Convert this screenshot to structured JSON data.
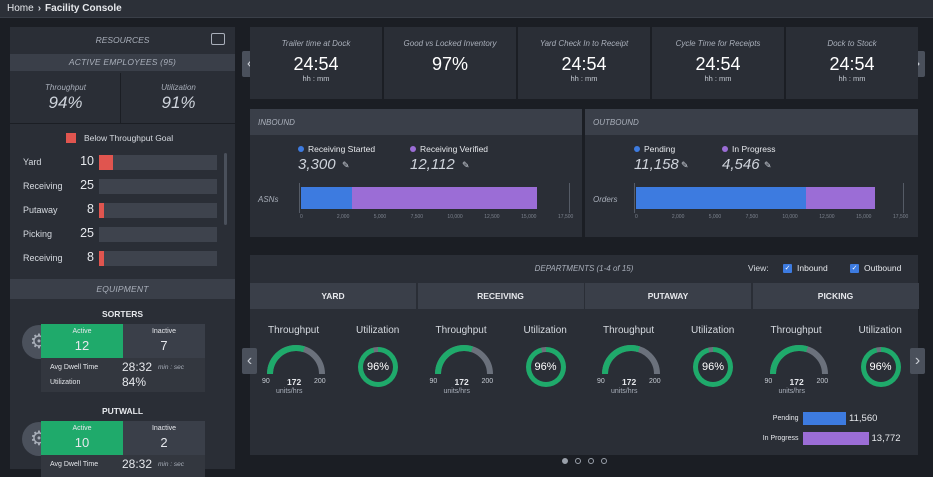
{
  "breadcrumb": {
    "home": "Home",
    "current": "Facility Console"
  },
  "resources": {
    "title": "RESOURCES",
    "active_employees": "ACTIVE EMPLOYEES (95)",
    "throughput_label": "Throughput",
    "throughput_value": "94%",
    "utilization_label": "Utilization",
    "utilization_value": "91%",
    "legend": "Below Throughput Goal",
    "rows": [
      {
        "name": "Yard",
        "value": "10",
        "fill": 0.12
      },
      {
        "name": "Receiving",
        "value": "25",
        "fill": 0
      },
      {
        "name": "Putaway",
        "value": "8",
        "fill": 0.04
      },
      {
        "name": "Picking",
        "value": "25",
        "fill": 0
      },
      {
        "name": "Receiving",
        "value": "8",
        "fill": 0.04
      }
    ]
  },
  "equipment": {
    "title": "EQUIPMENT",
    "groups": [
      {
        "name": "SORTERS",
        "active_label": "Active",
        "active": "12",
        "inactive_label": "Inactive",
        "inactive": "7",
        "dwell_label": "Avg Dwell Time",
        "dwell": "28:32",
        "dwell_unit": "min : sec",
        "util_label": "Utilization",
        "util": "84%"
      },
      {
        "name": "PUTWALL",
        "active_label": "Active",
        "active": "10",
        "inactive_label": "Inactive",
        "inactive": "2",
        "dwell_label": "Avg Dwell Time",
        "dwell": "28:32",
        "dwell_unit": "min : sec"
      }
    ]
  },
  "kpis": [
    {
      "title": "Trailer time at Dock",
      "value": "24:54",
      "unit": "hh : mm"
    },
    {
      "title": "Good vs Locked Inventory",
      "value": "97%",
      "unit": ""
    },
    {
      "title": "Yard Check In to Receipt",
      "value": "24:54",
      "unit": "hh : mm"
    },
    {
      "title": "Cycle Time for Receipts",
      "value": "24:54",
      "unit": "hh : mm"
    },
    {
      "title": "Dock to Stock",
      "value": "24:54",
      "unit": "hh : mm"
    }
  ],
  "inbound": {
    "title": "INBOUND",
    "s1_label": "Receiving Started",
    "s1_value": "3,300",
    "s2_label": "Receiving Verified",
    "s2_value": "12,112",
    "row_label": "ASNs",
    "ticks": [
      "0",
      "2,000",
      "5,000",
      "7,500",
      "10,000",
      "12,500",
      "15,000",
      "17,500"
    ],
    "axis_max": 17500,
    "colors": {
      "s1": "#3d7be0",
      "s2": "#9b6dd6"
    }
  },
  "outbound": {
    "title": "OUTBOUND",
    "s1_label": "Pending",
    "s1_value": "11,158",
    "s2_label": "In Progress",
    "s2_value": "4,546",
    "row_label": "Orders",
    "ticks": [
      "0",
      "2,000",
      "5,000",
      "7,500",
      "10,000",
      "12,500",
      "15,000",
      "17,500"
    ],
    "axis_max": 17500
  },
  "departments": {
    "title": "DEPARTMENTS (1-4 of 15)",
    "view_label": "View:",
    "inbound_label": "Inbound",
    "outbound_label": "Outbound",
    "cards": [
      {
        "name": "YARD",
        "throughput_label": "Throughput",
        "utilization_label": "Utilization",
        "min": "90",
        "val": "172",
        "max": "200",
        "units": "units/hrs",
        "util": "96%",
        "gauge": 0.6,
        "util_frac": 0.96
      },
      {
        "name": "RECEIVING",
        "throughput_label": "Throughput",
        "utilization_label": "Utilization",
        "min": "90",
        "val": "172",
        "max": "200",
        "units": "units/hrs",
        "util": "96%",
        "gauge": 0.6,
        "util_frac": 0.96
      },
      {
        "name": "PUTAWAY",
        "throughput_label": "Throughput",
        "utilization_label": "Utilization",
        "min": "90",
        "val": "172",
        "max": "200",
        "units": "units/hrs",
        "util": "96%",
        "gauge": 0.6,
        "util_frac": 0.96
      },
      {
        "name": "PICKING",
        "throughput_label": "Throughput",
        "utilization_label": "Utilization",
        "min": "90",
        "val": "172",
        "max": "200",
        "units": "units/hrs",
        "util": "96%",
        "gauge": 0.6,
        "util_frac": 0.96
      }
    ],
    "picking_bars": [
      {
        "label": "Pending",
        "value": "11,560",
        "frac": 0.66
      },
      {
        "label": "In Progress",
        "value": "13,772",
        "frac": 1.0
      }
    ]
  },
  "colors": {
    "green": "#1faa6b",
    "red": "#e0554f",
    "blue": "#3d7be0",
    "purple": "#9b6dd6"
  },
  "icons": {
    "export": "export-icon",
    "gear": "gear-icon",
    "edit": "edit-icon"
  }
}
